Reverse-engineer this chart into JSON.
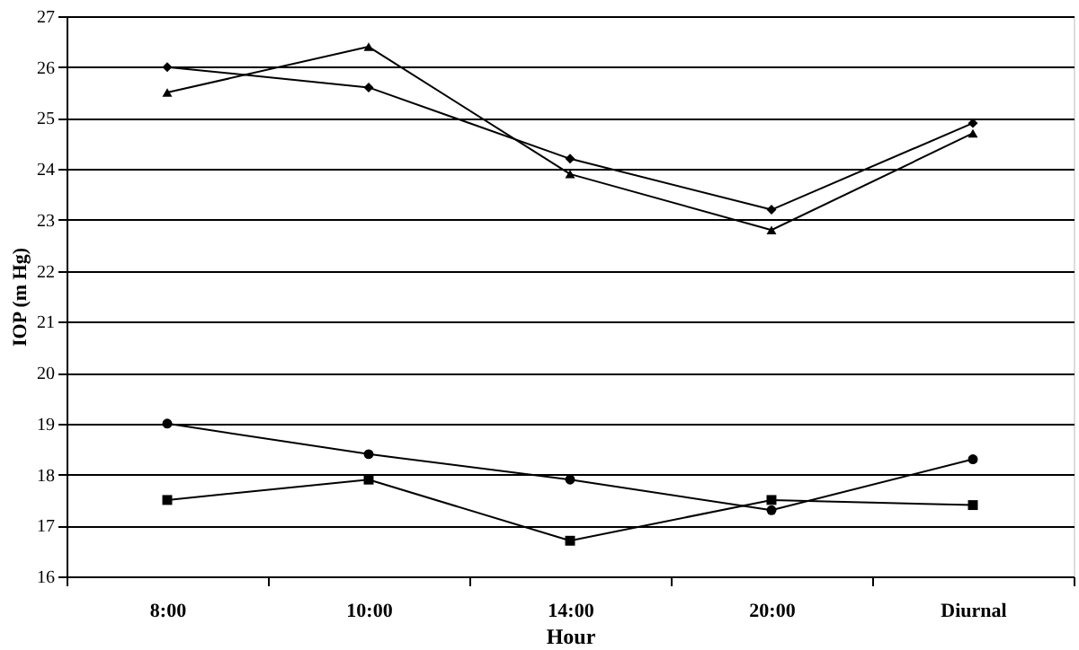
{
  "chart_data": {
    "type": "line",
    "xlabel": "Hour",
    "ylabel": "IOP (m Hg)",
    "categories": [
      "8:00",
      "10:00",
      "14:00",
      "20:00",
      "Diurnal"
    ],
    "series": [
      {
        "color": "#000000",
        "marker": "diamond",
        "values": [
          26.0,
          25.6,
          24.2,
          23.2,
          24.9
        ]
      },
      {
        "color": "#000000",
        "marker": "triangle",
        "values": [
          25.5,
          26.4,
          23.9,
          22.8,
          24.7
        ]
      },
      {
        "color": "#000000",
        "marker": "circle",
        "values": [
          19.0,
          18.4,
          17.9,
          17.3,
          18.3
        ]
      },
      {
        "color": "#000000",
        "marker": "square",
        "values": [
          17.5,
          17.9,
          16.7,
          17.5,
          17.4
        ]
      }
    ],
    "ylim": [
      16,
      27
    ],
    "yticks": [
      16,
      17,
      18,
      19,
      20,
      21,
      22,
      23,
      24,
      25,
      26,
      27
    ],
    "grid": "y",
    "line_style": "solid"
  }
}
